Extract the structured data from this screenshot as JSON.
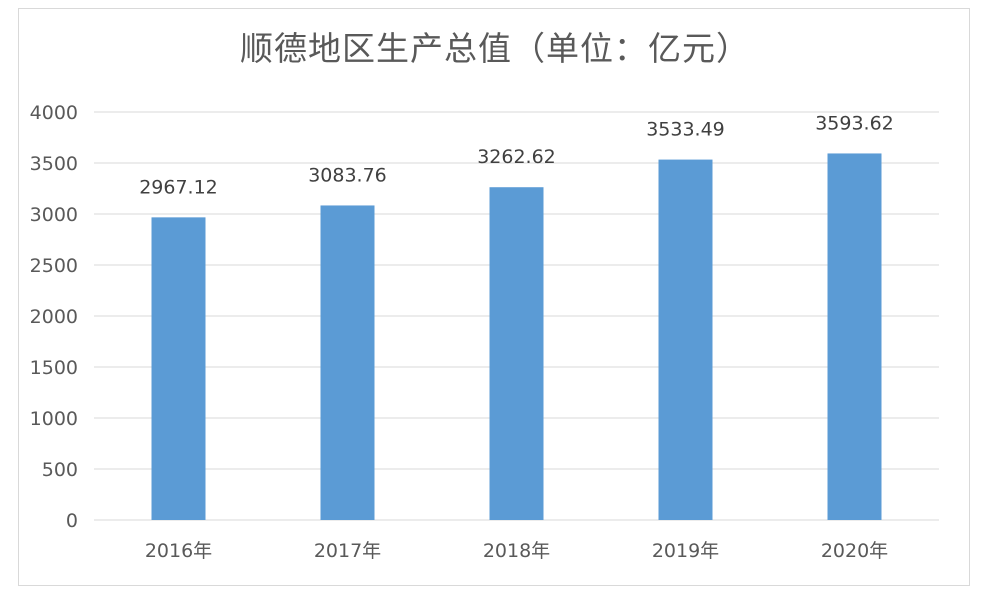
{
  "chart_data": {
    "type": "bar",
    "title": "顺德地区生产总值（单位：亿元）",
    "categories": [
      "2016年",
      "2017年",
      "2018年",
      "2019年",
      "2020年"
    ],
    "values": [
      2967.12,
      3083.76,
      3262.62,
      3533.49,
      3593.62
    ],
    "data_labels": [
      "2967.12",
      "3083.76",
      "3262.62",
      "3533.49",
      "3593.62"
    ],
    "ylim": [
      0,
      4000
    ],
    "yticks": [
      0,
      500,
      1000,
      1500,
      2000,
      2500,
      3000,
      3500,
      4000
    ],
    "grid": true,
    "legend": "none",
    "bar_color": "#5b9bd5",
    "grid_color": "#d9d9d9"
  }
}
